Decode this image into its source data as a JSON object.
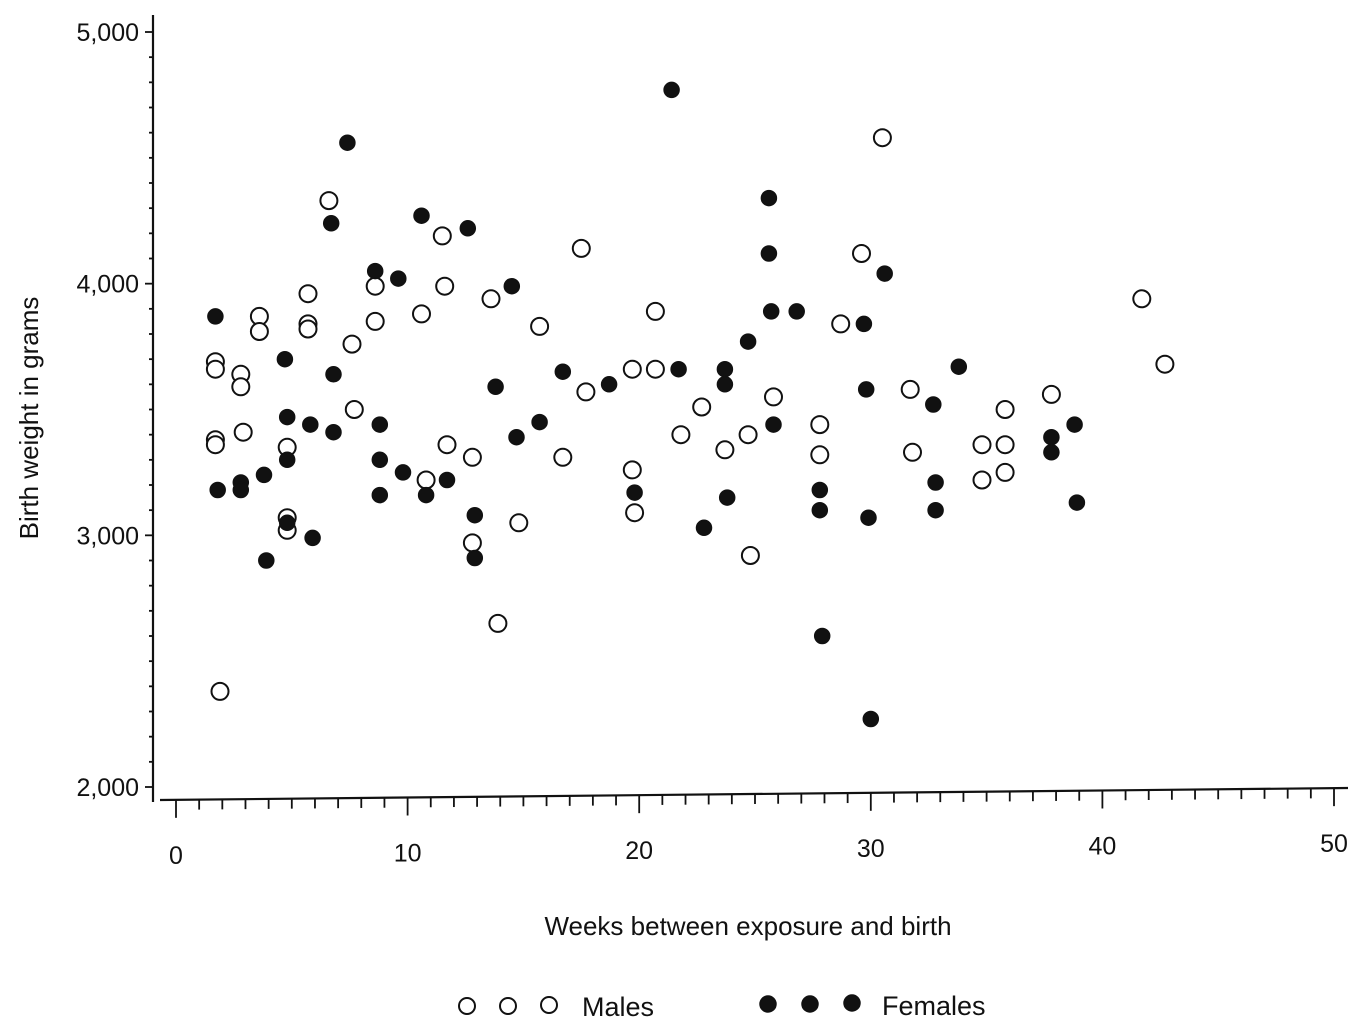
{
  "chart_data": {
    "type": "scatter",
    "title": "",
    "xlabel": "Weeks between exposure and birth",
    "ylabel": "Birth weight in grams",
    "xlim": [
      0,
      50
    ],
    "ylim": [
      2000,
      5000
    ],
    "x_ticks": [
      0,
      10,
      20,
      30,
      40,
      50
    ],
    "x_tick_labels": [
      "0",
      "10",
      "20",
      "30",
      "40",
      "50"
    ],
    "y_ticks": [
      2000,
      3000,
      4000,
      5000
    ],
    "y_tick_labels": [
      "2,000",
      "3,000",
      "4,000",
      "5,000"
    ],
    "grid": false,
    "legend_position": "bottom-center",
    "legend": [
      {
        "label": "Males",
        "marker": "open-circle"
      },
      {
        "label": "Females",
        "marker": "filled-circle"
      }
    ],
    "series": [
      {
        "name": "Males",
        "marker": "open-circle",
        "points": [
          [
            1.7,
            3690
          ],
          [
            1.7,
            3660
          ],
          [
            1.7,
            3380
          ],
          [
            1.7,
            3360
          ],
          [
            1.9,
            2380
          ],
          [
            2.8,
            3640
          ],
          [
            2.8,
            3590
          ],
          [
            2.9,
            3410
          ],
          [
            3.6,
            3870
          ],
          [
            3.6,
            3810
          ],
          [
            4.8,
            3350
          ],
          [
            4.8,
            3070
          ],
          [
            4.8,
            3020
          ],
          [
            5.7,
            3960
          ],
          [
            5.7,
            3840
          ],
          [
            5.7,
            3820
          ],
          [
            6.6,
            4330
          ],
          [
            7.6,
            3760
          ],
          [
            7.7,
            3500
          ],
          [
            8.6,
            3990
          ],
          [
            8.6,
            3850
          ],
          [
            10.6,
            3880
          ],
          [
            10.8,
            3220
          ],
          [
            11.5,
            4190
          ],
          [
            11.6,
            3990
          ],
          [
            11.7,
            3360
          ],
          [
            12.8,
            3310
          ],
          [
            12.8,
            2970
          ],
          [
            13.6,
            3940
          ],
          [
            13.9,
            2650
          ],
          [
            14.8,
            3050
          ],
          [
            15.7,
            3830
          ],
          [
            16.7,
            3310
          ],
          [
            17.5,
            4140
          ],
          [
            17.7,
            3570
          ],
          [
            19.7,
            3660
          ],
          [
            19.7,
            3260
          ],
          [
            19.8,
            3090
          ],
          [
            20.7,
            3890
          ],
          [
            20.7,
            3660
          ],
          [
            21.8,
            3400
          ],
          [
            22.7,
            3510
          ],
          [
            23.7,
            3340
          ],
          [
            24.7,
            3400
          ],
          [
            24.8,
            2920
          ],
          [
            25.8,
            3550
          ],
          [
            27.8,
            3440
          ],
          [
            27.8,
            3320
          ],
          [
            28.7,
            3840
          ],
          [
            29.6,
            4120
          ],
          [
            30.5,
            4580
          ],
          [
            31.7,
            3580
          ],
          [
            31.8,
            3330
          ],
          [
            34.8,
            3360
          ],
          [
            34.8,
            3220
          ],
          [
            35.8,
            3500
          ],
          [
            35.8,
            3360
          ],
          [
            35.8,
            3250
          ],
          [
            37.8,
            3560
          ],
          [
            41.7,
            3940
          ],
          [
            42.7,
            3680
          ]
        ]
      },
      {
        "name": "Females",
        "marker": "filled-circle",
        "points": [
          [
            1.7,
            3870
          ],
          [
            1.8,
            3180
          ],
          [
            2.8,
            3210
          ],
          [
            2.8,
            3180
          ],
          [
            3.8,
            3240
          ],
          [
            3.9,
            2900
          ],
          [
            4.7,
            3700
          ],
          [
            4.8,
            3470
          ],
          [
            4.8,
            3300
          ],
          [
            4.8,
            3050
          ],
          [
            5.8,
            3440
          ],
          [
            5.9,
            2990
          ],
          [
            6.7,
            4240
          ],
          [
            6.8,
            3640
          ],
          [
            6.8,
            3410
          ],
          [
            7.4,
            4560
          ],
          [
            8.6,
            4050
          ],
          [
            8.8,
            3440
          ],
          [
            8.8,
            3300
          ],
          [
            8.8,
            3160
          ],
          [
            9.6,
            4020
          ],
          [
            9.8,
            3250
          ],
          [
            10.6,
            4270
          ],
          [
            10.8,
            3160
          ],
          [
            11.7,
            3220
          ],
          [
            12.6,
            4220
          ],
          [
            12.9,
            3080
          ],
          [
            12.9,
            2910
          ],
          [
            14.5,
            3990
          ],
          [
            14.7,
            3390
          ],
          [
            13.8,
            3590
          ],
          [
            15.7,
            3450
          ],
          [
            16.7,
            3650
          ],
          [
            18.7,
            3600
          ],
          [
            19.8,
            3170
          ],
          [
            21.4,
            4770
          ],
          [
            21.7,
            3660
          ],
          [
            22.8,
            3030
          ],
          [
            23.7,
            3660
          ],
          [
            23.7,
            3600
          ],
          [
            23.8,
            3150
          ],
          [
            24.7,
            3770
          ],
          [
            25.6,
            4340
          ],
          [
            25.6,
            4120
          ],
          [
            25.7,
            3890
          ],
          [
            25.8,
            3440
          ],
          [
            26.8,
            3890
          ],
          [
            27.8,
            3180
          ],
          [
            27.8,
            3100
          ],
          [
            27.9,
            2600
          ],
          [
            29.7,
            3840
          ],
          [
            29.8,
            3580
          ],
          [
            29.9,
            3070
          ],
          [
            30.0,
            2270
          ],
          [
            30.6,
            4040
          ],
          [
            32.7,
            3520
          ],
          [
            32.8,
            3210
          ],
          [
            32.8,
            3100
          ],
          [
            33.8,
            3670
          ],
          [
            37.8,
            3390
          ],
          [
            37.8,
            3330
          ],
          [
            38.8,
            3440
          ],
          [
            38.9,
            3130
          ]
        ]
      }
    ]
  }
}
